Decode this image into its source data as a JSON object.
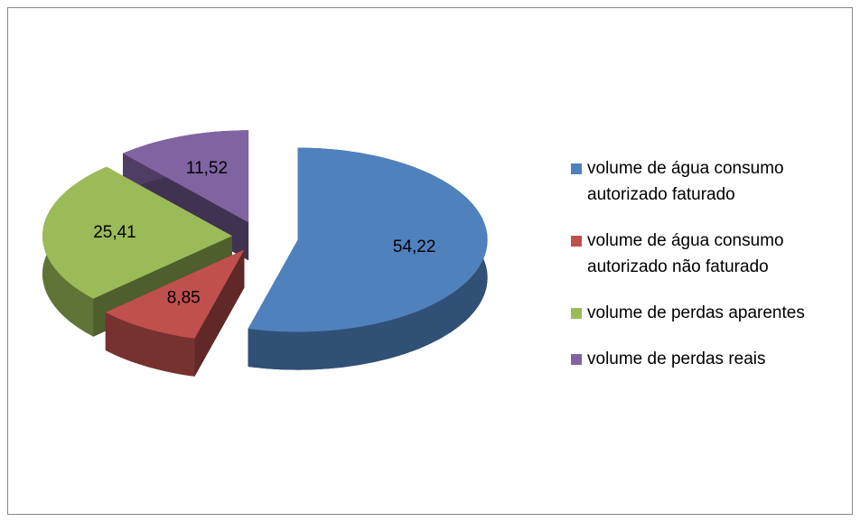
{
  "chart_data": {
    "type": "pie",
    "categories": [
      "volume de água consumo autorizado faturado",
      "volume de água consumo autorizado não faturado",
      "volume de perdas aparentes",
      "volume de perdas reais"
    ],
    "values": [
      54.22,
      8.85,
      25.41,
      11.52
    ],
    "value_labels": [
      "54,22",
      "8,85",
      "25,41",
      "11,52"
    ],
    "colors": [
      "#4f81bd",
      "#c0504d",
      "#9bbb59",
      "#8064a2"
    ],
    "legend": "right"
  }
}
